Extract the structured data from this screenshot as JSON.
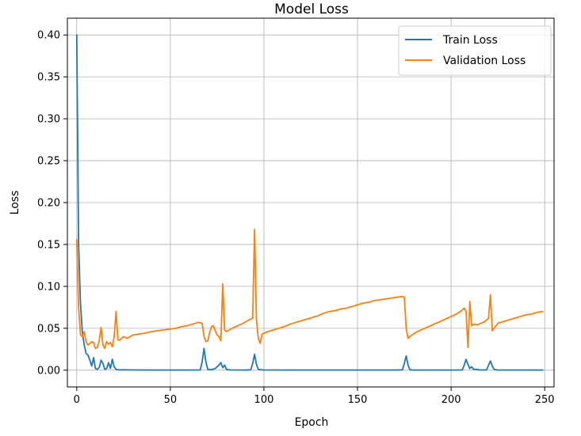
{
  "chart_data": {
    "type": "line",
    "title": "Model Loss",
    "xlabel": "Epoch",
    "ylabel": "Loss",
    "xlim": [
      -5,
      255
    ],
    "ylim": [
      -0.02,
      0.42
    ],
    "xticks": [
      0,
      50,
      100,
      150,
      200,
      250
    ],
    "yticks": [
      0.0,
      0.05,
      0.1,
      0.15,
      0.2,
      0.25,
      0.3,
      0.35,
      0.4
    ],
    "xtick_labels": [
      "0",
      "50",
      "100",
      "150",
      "200",
      "250"
    ],
    "ytick_labels": [
      "0.00",
      "0.05",
      "0.10",
      "0.15",
      "0.20",
      "0.25",
      "0.30",
      "0.35",
      "0.40"
    ],
    "grid": true,
    "legend_position": "top-right",
    "series": [
      {
        "name": "Train Loss",
        "color": "#1f77b4",
        "points": [
          [
            0,
            0.4
          ],
          [
            1,
            0.15
          ],
          [
            2,
            0.08
          ],
          [
            3,
            0.045
          ],
          [
            4,
            0.03
          ],
          [
            5,
            0.02
          ],
          [
            6,
            0.018
          ],
          [
            7,
            0.012
          ],
          [
            8,
            0.005
          ],
          [
            9,
            0.015
          ],
          [
            10,
            0.002
          ],
          [
            11,
            0.001
          ],
          [
            12,
            0.003
          ],
          [
            13,
            0.012
          ],
          [
            14,
            0.008
          ],
          [
            15,
            0.001
          ],
          [
            16,
            0.002
          ],
          [
            17,
            0.009
          ],
          [
            18,
            0.002
          ],
          [
            19,
            0.013
          ],
          [
            20,
            0.004
          ],
          [
            21,
            0.001
          ],
          [
            22,
            0.0005
          ],
          [
            30,
            0.0003
          ],
          [
            40,
            0.0002
          ],
          [
            50,
            0.0002
          ],
          [
            60,
            0.0002
          ],
          [
            66,
            0.0003
          ],
          [
            67,
            0.01
          ],
          [
            68,
            0.026
          ],
          [
            69,
            0.01
          ],
          [
            70,
            0.001
          ],
          [
            72,
            0.0005
          ],
          [
            74,
            0.002
          ],
          [
            76,
            0.006
          ],
          [
            77,
            0.009
          ],
          [
            78,
            0.003
          ],
          [
            79,
            0.006
          ],
          [
            80,
            0.001
          ],
          [
            82,
            0.0003
          ],
          [
            90,
            0.0002
          ],
          [
            93,
            0.0005
          ],
          [
            94,
            0.008
          ],
          [
            95,
            0.019
          ],
          [
            96,
            0.007
          ],
          [
            97,
            0.001
          ],
          [
            99,
            0.0003
          ],
          [
            110,
            0.0002
          ],
          [
            130,
            0.0002
          ],
          [
            150,
            0.0002
          ],
          [
            170,
            0.0002
          ],
          [
            174,
            0.0004
          ],
          [
            175,
            0.008
          ],
          [
            176,
            0.017
          ],
          [
            177,
            0.006
          ],
          [
            178,
            0.0005
          ],
          [
            180,
            0.0002
          ],
          [
            200,
            0.0002
          ],
          [
            206,
            0.0003
          ],
          [
            207,
            0.006
          ],
          [
            208,
            0.013
          ],
          [
            209,
            0.007
          ],
          [
            210,
            0.002
          ],
          [
            211,
            0.004
          ],
          [
            212,
            0.001
          ],
          [
            214,
            0.001
          ],
          [
            215,
            0.0003
          ],
          [
            219,
            0.0003
          ],
          [
            220,
            0.006
          ],
          [
            221,
            0.011
          ],
          [
            222,
            0.005
          ],
          [
            223,
            0.001
          ],
          [
            225,
            0.0002
          ],
          [
            240,
            0.0002
          ],
          [
            249,
            0.0002
          ]
        ]
      },
      {
        "name": "Validation Loss",
        "color": "#ff7f0e",
        "points": [
          [
            0,
            0.156
          ],
          [
            1,
            0.075
          ],
          [
            2,
            0.042
          ],
          [
            3,
            0.04
          ],
          [
            4,
            0.046
          ],
          [
            5,
            0.034
          ],
          [
            6,
            0.03
          ],
          [
            7,
            0.032
          ],
          [
            8,
            0.034
          ],
          [
            9,
            0.033
          ],
          [
            10,
            0.026
          ],
          [
            11,
            0.027
          ],
          [
            12,
            0.035
          ],
          [
            13,
            0.051
          ],
          [
            14,
            0.03
          ],
          [
            15,
            0.026
          ],
          [
            16,
            0.034
          ],
          [
            17,
            0.031
          ],
          [
            18,
            0.033
          ],
          [
            19,
            0.028
          ],
          [
            20,
            0.04
          ],
          [
            21,
            0.07
          ],
          [
            22,
            0.036
          ],
          [
            23,
            0.036
          ],
          [
            25,
            0.04
          ],
          [
            27,
            0.038
          ],
          [
            30,
            0.042
          ],
          [
            33,
            0.043
          ],
          [
            36,
            0.044
          ],
          [
            40,
            0.046
          ],
          [
            43,
            0.047
          ],
          [
            46,
            0.048
          ],
          [
            50,
            0.049
          ],
          [
            53,
            0.05
          ],
          [
            56,
            0.052
          ],
          [
            59,
            0.053
          ],
          [
            62,
            0.055
          ],
          [
            65,
            0.057
          ],
          [
            67,
            0.056
          ],
          [
            68,
            0.04
          ],
          [
            69,
            0.034
          ],
          [
            70,
            0.035
          ],
          [
            71,
            0.045
          ],
          [
            72,
            0.052
          ],
          [
            73,
            0.053
          ],
          [
            74,
            0.047
          ],
          [
            75,
            0.042
          ],
          [
            76,
            0.04
          ],
          [
            77,
            0.035
          ],
          [
            78,
            0.103
          ],
          [
            79,
            0.048
          ],
          [
            80,
            0.046
          ],
          [
            83,
            0.05
          ],
          [
            86,
            0.053
          ],
          [
            89,
            0.056
          ],
          [
            92,
            0.06
          ],
          [
            94,
            0.062
          ],
          [
            95,
            0.168
          ],
          [
            96,
            0.06
          ],
          [
            97,
            0.038
          ],
          [
            98,
            0.032
          ],
          [
            99,
            0.043
          ],
          [
            102,
            0.046
          ],
          [
            105,
            0.048
          ],
          [
            108,
            0.05
          ],
          [
            111,
            0.052
          ],
          [
            114,
            0.055
          ],
          [
            117,
            0.057
          ],
          [
            120,
            0.059
          ],
          [
            123,
            0.061
          ],
          [
            126,
            0.063
          ],
          [
            129,
            0.065
          ],
          [
            132,
            0.068
          ],
          [
            135,
            0.07
          ],
          [
            138,
            0.071
          ],
          [
            141,
            0.073
          ],
          [
            144,
            0.074
          ],
          [
            147,
            0.076
          ],
          [
            150,
            0.078
          ],
          [
            153,
            0.08
          ],
          [
            156,
            0.081
          ],
          [
            159,
            0.083
          ],
          [
            162,
            0.084
          ],
          [
            165,
            0.085
          ],
          [
            168,
            0.086
          ],
          [
            171,
            0.087
          ],
          [
            174,
            0.088
          ],
          [
            175,
            0.087
          ],
          [
            176,
            0.05
          ],
          [
            177,
            0.038
          ],
          [
            178,
            0.04
          ],
          [
            181,
            0.045
          ],
          [
            184,
            0.048
          ],
          [
            187,
            0.051
          ],
          [
            190,
            0.054
          ],
          [
            193,
            0.057
          ],
          [
            196,
            0.06
          ],
          [
            199,
            0.063
          ],
          [
            202,
            0.066
          ],
          [
            205,
            0.07
          ],
          [
            207,
            0.074
          ],
          [
            208,
            0.07
          ],
          [
            209,
            0.027
          ],
          [
            210,
            0.082
          ],
          [
            211,
            0.053
          ],
          [
            212,
            0.055
          ],
          [
            214,
            0.054
          ],
          [
            216,
            0.056
          ],
          [
            218,
            0.058
          ],
          [
            220,
            0.062
          ],
          [
            221,
            0.09
          ],
          [
            222,
            0.047
          ],
          [
            223,
            0.05
          ],
          [
            225,
            0.056
          ],
          [
            228,
            0.058
          ],
          [
            231,
            0.06
          ],
          [
            234,
            0.062
          ],
          [
            237,
            0.064
          ],
          [
            240,
            0.066
          ],
          [
            243,
            0.067
          ],
          [
            246,
            0.069
          ],
          [
            249,
            0.07
          ]
        ]
      }
    ]
  }
}
